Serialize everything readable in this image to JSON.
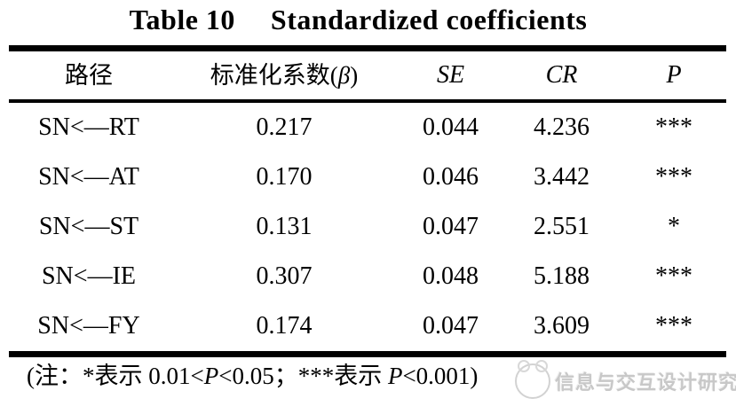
{
  "title": {
    "label": "Table 10",
    "text": "Standardized coefficients"
  },
  "table": {
    "headers": {
      "path": "路径",
      "beta_prefix": "标准化系数(",
      "beta_symbol": "β",
      "beta_suffix": ")",
      "se": "SE",
      "cr": "CR",
      "p": "P"
    },
    "rows": [
      {
        "path": "SN<—RT",
        "beta": "0.217",
        "se": "0.044",
        "cr": "4.236",
        "p": "***"
      },
      {
        "path": "SN<—AT",
        "beta": "0.170",
        "se": "0.046",
        "cr": "3.442",
        "p": "***"
      },
      {
        "path": "SN<—ST",
        "beta": "0.131",
        "se": "0.047",
        "cr": "2.551",
        "p": "*"
      },
      {
        "path": "SN<—IE",
        "beta": "0.307",
        "se": "0.048",
        "cr": "5.188",
        "p": "***"
      },
      {
        "path": "SN<—FY",
        "beta": "0.174",
        "se": "0.047",
        "cr": "3.609",
        "p": "***"
      }
    ]
  },
  "footnote": {
    "part1": "(注：*表示 0.01<",
    "p1": "P",
    "part2": "<0.05；***表示 ",
    "p2": "P",
    "part3": "<0.001)"
  },
  "watermark": {
    "text": "信息与交互设计研究所",
    "color": "#c8c8c8"
  }
}
